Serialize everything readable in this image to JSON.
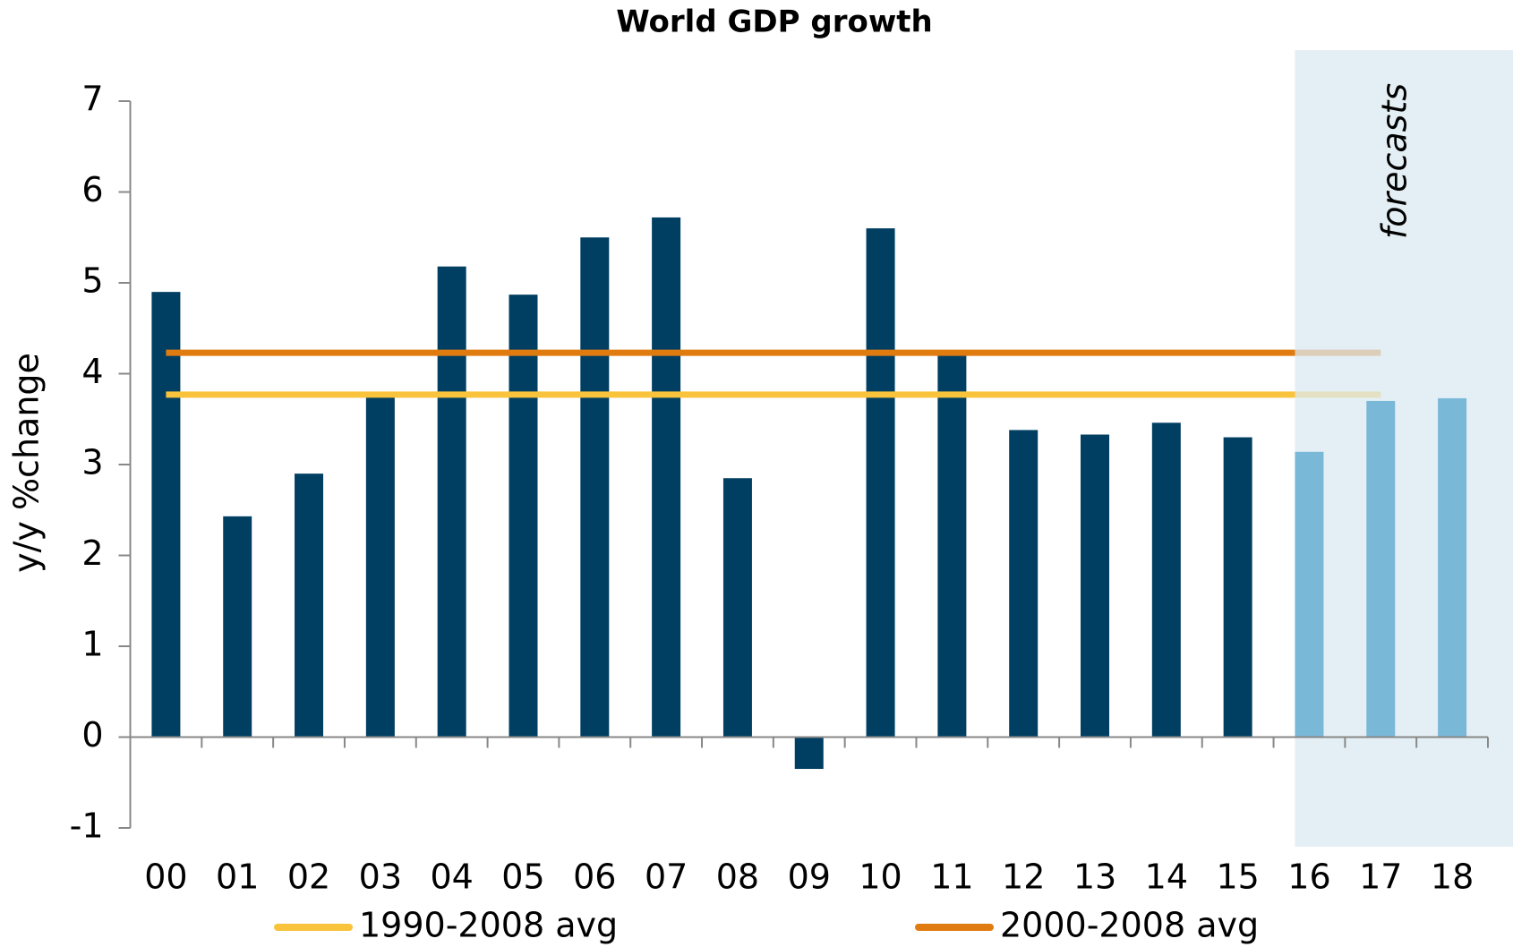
{
  "chart_data": {
    "type": "bar",
    "title": "World GDP growth",
    "y_label": "y/y %change",
    "annotation": "forecasts",
    "categories": [
      "00",
      "01",
      "02",
      "03",
      "04",
      "05",
      "06",
      "07",
      "08",
      "09",
      "10",
      "11",
      "12",
      "13",
      "14",
      "15",
      "16",
      "17",
      "18"
    ],
    "values": [
      4.9,
      2.43,
      2.9,
      3.8,
      5.18,
      4.87,
      5.5,
      5.72,
      2.85,
      -0.35,
      5.6,
      4.25,
      3.38,
      3.33,
      3.46,
      3.3,
      3.14,
      3.7,
      3.73
    ],
    "colors": [
      "#003f62",
      "#003f62",
      "#003f62",
      "#003f62",
      "#003f62",
      "#003f62",
      "#003f62",
      "#003f62",
      "#003f62",
      "#003f62",
      "#003f62",
      "#003f62",
      "#003f62",
      "#003f62",
      "#003f62",
      "#003f62",
      "#7ab8d8",
      "#7ab8d8",
      "#7ab8d8"
    ],
    "forecast_from": "16",
    "forecast_shade": "#dbe9f1",
    "reference_lines": [
      {
        "name": "1990-2008 avg",
        "color": "#f9c33b",
        "value": 3.77
      },
      {
        "name": "2000-2008 avg",
        "color": "#e07b10",
        "value": 4.23
      }
    ],
    "ylim": [
      -1,
      7
    ],
    "yticks": [
      -1,
      0,
      1,
      2,
      3,
      4,
      5,
      6,
      7
    ]
  }
}
